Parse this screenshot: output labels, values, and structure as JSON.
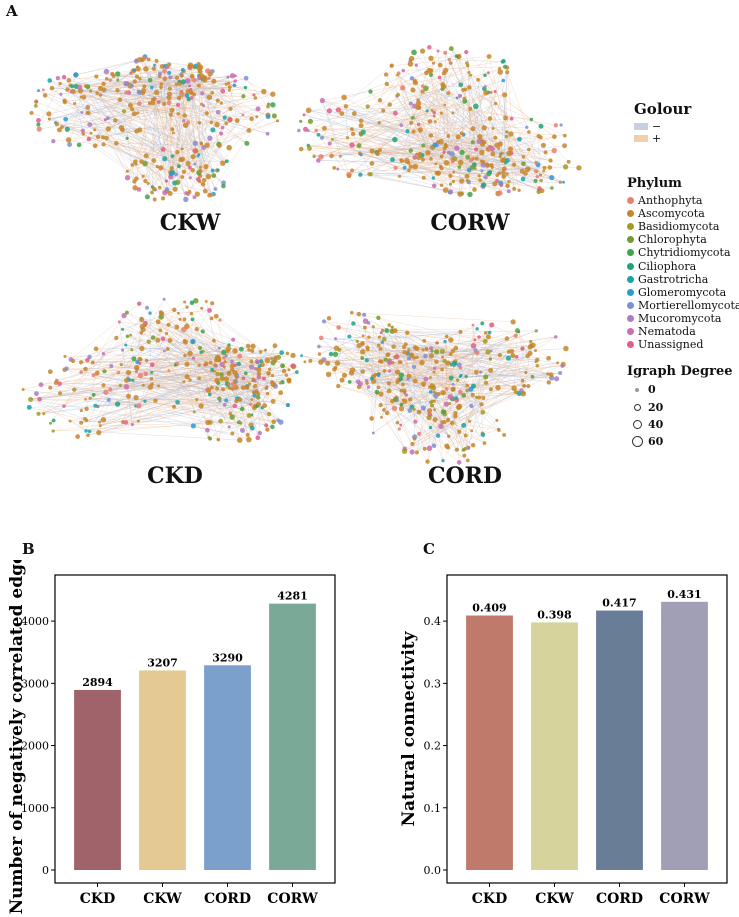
{
  "panels": {
    "a": "A",
    "b": "B",
    "c": "C"
  },
  "networks": [
    "CKW",
    "CORW",
    "CKD",
    "CORD"
  ],
  "legend": {
    "colour_title": "Golour",
    "colour_items": [
      {
        "label": "−",
        "color": "#c9cfe2"
      },
      {
        "label": "+",
        "color": "#f0cfae"
      }
    ],
    "phylum_title": "Phylum",
    "phylum_items": [
      {
        "label": "Anthophyta",
        "color": "#e8806f"
      },
      {
        "label": "Ascomycota",
        "color": "#c8862a"
      },
      {
        "label": "Basidiomycota",
        "color": "#a59a25"
      },
      {
        "label": "Chlorophyta",
        "color": "#6f9d2e"
      },
      {
        "label": "Chytridiomycota",
        "color": "#3ea34c"
      },
      {
        "label": "Ciliophora",
        "color": "#1ea57a"
      },
      {
        "label": "Gastrotricha",
        "color": "#16a6a6"
      },
      {
        "label": "Glomeromycota",
        "color": "#2a9bd0"
      },
      {
        "label": "Mortierellomycota",
        "color": "#7b8fd6"
      },
      {
        "label": "Mucoromycota",
        "color": "#a97fc4"
      },
      {
        "label": "Nematoda",
        "color": "#c76fb0"
      },
      {
        "label": "Unassigned",
        "color": "#e25d8c"
      }
    ],
    "degree_title": "Igraph Degree",
    "degree_items": [
      "0",
      "20",
      "40",
      "60"
    ]
  },
  "chart_data": [
    {
      "type": "bar",
      "categories": [
        "CKD",
        "CKW",
        "CORD",
        "CORW"
      ],
      "values": [
        2894,
        3207,
        3290,
        4281
      ],
      "value_labels": [
        "2894",
        "3207",
        "3290",
        "4281"
      ],
      "colors": [
        "#a0636a",
        "#e4c992",
        "#7ba0cb",
        "#7aa998"
      ],
      "ylabel": "Number of negatively correlated edges",
      "ylim": [
        0,
        4500
      ],
      "yticks": [
        0,
        1000,
        2000,
        3000,
        4000
      ],
      "ytick_labels": [
        "0",
        "1000",
        "2000",
        "3000",
        "4000"
      ],
      "grid": false
    },
    {
      "type": "bar",
      "categories": [
        "CKD",
        "CKW",
        "CORD",
        "CORW"
      ],
      "values": [
        0.409,
        0.398,
        0.417,
        0.431
      ],
      "value_labels": [
        "0.409",
        "0.398",
        "0.417",
        "0.431"
      ],
      "colors": [
        "#bf7a6c",
        "#d6d49c",
        "#6a7d97",
        "#a09fb6"
      ],
      "ylabel": "Natural connectivity",
      "ylim": [
        0,
        0.45
      ],
      "yticks": [
        0.0,
        0.1,
        0.2,
        0.3,
        0.4
      ],
      "ytick_labels": [
        "0.0",
        "0.1",
        "0.2",
        "0.3",
        "0.4"
      ],
      "grid": false
    }
  ]
}
